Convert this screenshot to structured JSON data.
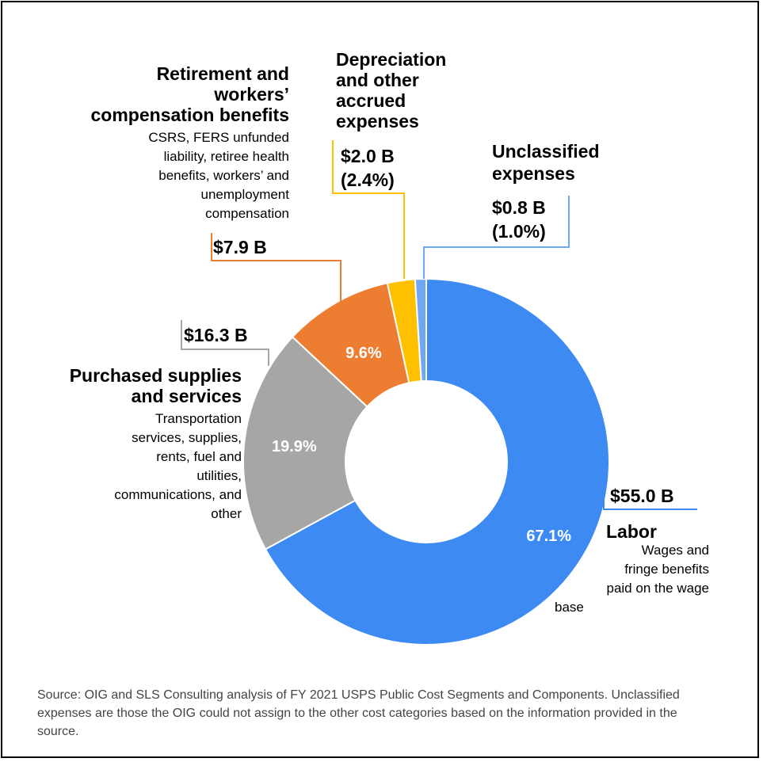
{
  "chart_data": {
    "type": "pie",
    "donut": true,
    "slices": [
      {
        "category": "Labor",
        "description": "Wages and fringe benefits paid on the wage base",
        "value_label": "$55.0 B",
        "value": 55.0,
        "percent": 67.1,
        "percent_label": "67.1%",
        "color": "#3d8bf2"
      },
      {
        "category": "Purchased supplies and services",
        "description": "Transportation services, supplies, rents, fuel and utilities, communications, and other",
        "value_label": "$16.3 B",
        "value": 16.3,
        "percent": 19.9,
        "percent_label": "19.9%",
        "color": "#a6a6a6"
      },
      {
        "category": "Retirement and workers' compensation benefits",
        "description": "CSRS, FERS unfunded liability, retiree health benefits, workers' and unemployment compensation",
        "value_label": "$7.9 B",
        "value": 7.9,
        "percent": 9.6,
        "percent_label": "9.6%",
        "color": "#ed7d31"
      },
      {
        "category": "Depreciation and other accrued expenses",
        "value_label": "$2.0 B",
        "value": 2.0,
        "percent": 2.4,
        "percent_label": "(2.4%)",
        "color": "#ffc000"
      },
      {
        "category": "Unclassified expenses",
        "value_label": "$0.8 B",
        "value": 0.8,
        "percent": 1.0,
        "percent_label": "(1.0%)",
        "color": "#6fa8f2"
      }
    ]
  },
  "labels": {
    "retirement_title": [
      "Retirement and",
      "workers’",
      "compensation benefits"
    ],
    "retirement_desc": [
      "CSRS, FERS unfunded",
      "liability, retiree health",
      "benefits, workers’ and",
      "unemployment",
      "compensation"
    ],
    "retirement_value": "$7.9 B",
    "depreciation_title": [
      "Depreciation",
      "and other",
      "accrued",
      "expenses"
    ],
    "depreciation_value": "$2.0 B",
    "depreciation_pct": "(2.4%)",
    "unclassified_title": [
      "Unclassified",
      "expenses"
    ],
    "unclassified_value": "$0.8 B",
    "unclassified_pct": "(1.0%)",
    "purchased_value": "$16.3 B",
    "purchased_title": [
      "Purchased supplies",
      "and services"
    ],
    "purchased_desc": [
      "Transportation",
      "services, supplies,",
      "rents, fuel and",
      "utilities,",
      "communications, and",
      "other"
    ],
    "labor_value": "$55.0 B",
    "labor_title": "Labor",
    "labor_desc": [
      "Wages and",
      "fringe benefits",
      "paid on the wage",
      "base"
    ]
  },
  "source": "Source: OIG and SLS Consulting analysis of FY 2021 USPS Public Cost Segments and Components. Unclassified expenses are those the OIG could not assign to the other cost categories based on the information provided in the source."
}
